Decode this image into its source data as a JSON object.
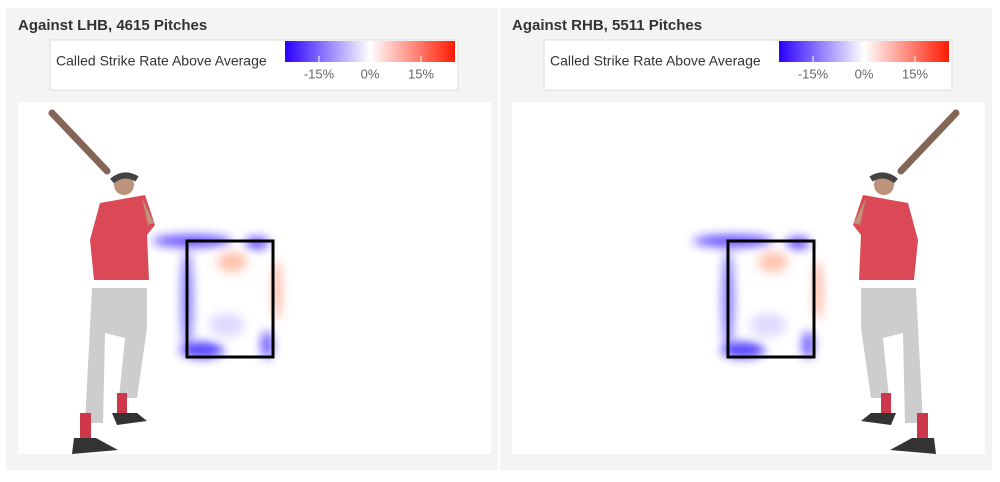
{
  "panels": [
    {
      "title": "Against LHB, 4615 Pitches",
      "batter_side": "left"
    },
    {
      "title": "Against RHB, 5511 Pitches",
      "batter_side": "right"
    }
  ],
  "legend": {
    "label": "Called Strike Rate Above Average",
    "lim": [
      -25,
      25
    ],
    "ticks": [
      {
        "value": -15,
        "label": "-15%"
      },
      {
        "value": 0,
        "label": "0%"
      },
      {
        "value": 15,
        "label": "15%"
      }
    ]
  }
}
